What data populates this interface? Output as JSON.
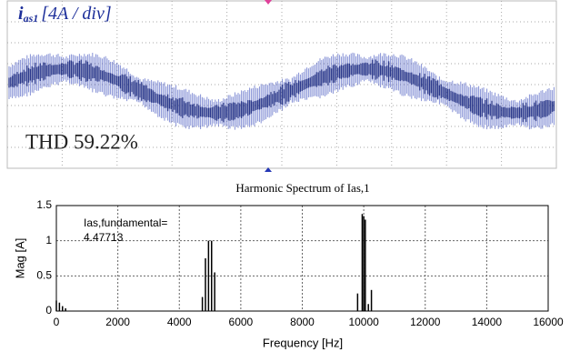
{
  "chart_data": [
    {
      "type": "scope",
      "label": {
        "symbol": "i",
        "subscript": "as1",
        "scale": "[4A / div]"
      },
      "annotation": "THD 59.22%",
      "color": "#2437b5"
    },
    {
      "type": "stem",
      "title": "Harmonic Spectrum of Ias,1",
      "xlabel": "Frequency [Hz]",
      "ylabel": "Mag [A]",
      "annotation": [
        "Ias,fundamental=",
        "4.47713"
      ],
      "x": [
        0,
        100,
        200,
        300,
        4750,
        4850,
        4950,
        5050,
        5150,
        9800,
        9950,
        10000,
        10050,
        10150,
        10250
      ],
      "values": [
        0.15,
        0.12,
        0.07,
        0.04,
        0.2,
        0.75,
        1.0,
        1.0,
        0.55,
        0.25,
        1.38,
        1.35,
        1.3,
        0.1,
        0.3
      ],
      "color": "#000000",
      "xlim": [
        0,
        16000
      ],
      "xticks": [
        0,
        2000,
        4000,
        6000,
        8000,
        10000,
        12000,
        14000,
        16000
      ],
      "ylim": [
        0,
        1.5
      ],
      "yticks": [
        0,
        0.5,
        1,
        1.5
      ],
      "grid": true
    }
  ]
}
